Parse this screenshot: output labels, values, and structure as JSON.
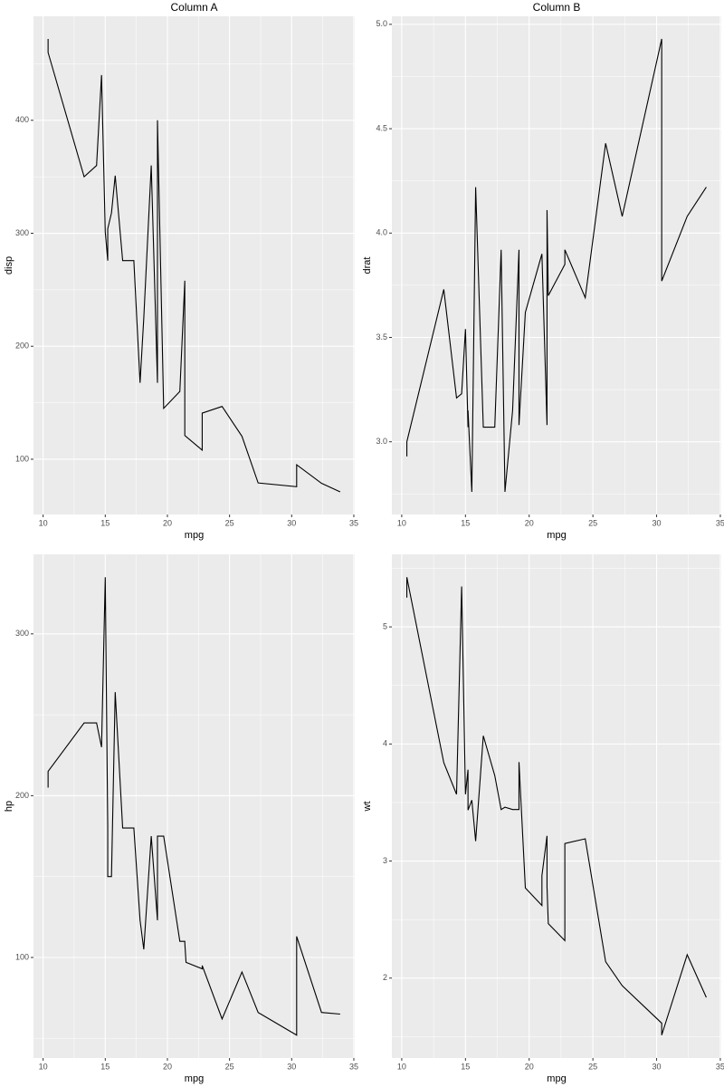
{
  "chart_data": [
    {
      "type": "line",
      "title": "Column A",
      "xlabel": "mpg",
      "ylabel": "disp",
      "color": "#000000",
      "grid": true,
      "x": [
        10.4,
        10.4,
        13.3,
        14.3,
        14.7,
        15.0,
        15.2,
        15.2,
        15.5,
        15.8,
        16.4,
        17.3,
        17.8,
        18.1,
        18.7,
        19.2,
        19.2,
        19.7,
        21.0,
        21.0,
        21.4,
        21.4,
        21.5,
        22.8,
        22.8,
        24.4,
        26.0,
        27.3,
        30.4,
        30.4,
        32.4,
        33.9
      ],
      "values": [
        472,
        460,
        350,
        360,
        440,
        301,
        275.8,
        304,
        318,
        351,
        275.8,
        275.8,
        167.6,
        225,
        360,
        167.6,
        400,
        145,
        160,
        160,
        258,
        121,
        120.1,
        108,
        140.8,
        146.7,
        120.3,
        79,
        75.7,
        95.1,
        78.7,
        71.1
      ],
      "xlim": [
        9.225,
        35.075
      ],
      "xticks": [
        10,
        15,
        20,
        25,
        30,
        35
      ],
      "ylim": [
        51.055,
        492.045
      ],
      "yticks": [
        100,
        200,
        300,
        400
      ]
    },
    {
      "type": "line",
      "title": "Column B",
      "xlabel": "mpg",
      "ylabel": "drat",
      "color": "#000000",
      "grid": true,
      "x": [
        10.4,
        10.4,
        13.3,
        14.3,
        14.7,
        15.0,
        15.2,
        15.2,
        15.5,
        15.8,
        16.4,
        17.3,
        17.8,
        18.1,
        18.7,
        19.2,
        19.2,
        19.7,
        21.0,
        21.0,
        21.4,
        21.4,
        21.5,
        22.8,
        22.8,
        24.4,
        26.0,
        27.3,
        30.4,
        30.4,
        32.4,
        33.9
      ],
      "values": [
        2.93,
        3.0,
        3.73,
        3.21,
        3.23,
        3.54,
        3.07,
        3.15,
        2.76,
        4.22,
        3.07,
        3.07,
        3.92,
        2.76,
        3.15,
        3.92,
        3.08,
        3.62,
        3.9,
        3.9,
        3.08,
        4.11,
        3.7,
        3.85,
        3.92,
        3.69,
        4.43,
        4.08,
        4.93,
        3.77,
        4.08,
        4.22
      ],
      "xlim": [
        9.225,
        35.075
      ],
      "xticks": [
        10,
        15,
        20,
        25,
        30,
        35
      ],
      "ylim": [
        2.6515,
        5.0385
      ],
      "yticks": [
        {
          "value": 3,
          "label": "3.0"
        },
        3.5,
        {
          "value": 4,
          "label": "4.0"
        },
        4.5,
        {
          "value": 5,
          "label": "5.0"
        }
      ]
    },
    {
      "type": "line",
      "xlabel": "mpg",
      "ylabel": "hp",
      "color": "#000000",
      "grid": true,
      "x": [
        10.4,
        10.4,
        13.3,
        14.3,
        14.7,
        15.0,
        15.2,
        15.2,
        15.5,
        15.8,
        16.4,
        17.3,
        17.8,
        18.1,
        18.7,
        19.2,
        19.2,
        19.7,
        21.0,
        21.0,
        21.4,
        21.4,
        21.5,
        22.8,
        22.8,
        24.4,
        26.0,
        27.3,
        30.4,
        30.4,
        32.4,
        33.9
      ],
      "values": [
        205,
        215,
        245,
        245,
        230,
        335,
        180,
        150,
        150,
        264,
        180,
        180,
        123,
        105,
        175,
        123,
        175,
        175,
        110,
        110,
        110,
        109,
        97,
        93,
        95,
        62,
        91,
        66,
        52,
        113,
        66,
        65
      ],
      "xlim": [
        9.225,
        35.075
      ],
      "xticks": [
        10,
        15,
        20,
        25,
        30,
        35
      ],
      "ylim": [
        37.85,
        349.15
      ],
      "yticks": [
        100,
        200,
        300
      ]
    },
    {
      "type": "line",
      "xlabel": "mpg",
      "ylabel": "wt",
      "color": "#000000",
      "grid": true,
      "x": [
        10.4,
        10.4,
        13.3,
        14.3,
        14.7,
        15.0,
        15.2,
        15.2,
        15.5,
        15.8,
        16.4,
        17.3,
        17.8,
        18.1,
        18.7,
        19.2,
        19.2,
        19.7,
        21.0,
        21.0,
        21.4,
        21.4,
        21.5,
        22.8,
        22.8,
        24.4,
        26.0,
        27.3,
        30.4,
        30.4,
        32.4,
        33.9
      ],
      "values": [
        5.25,
        5.424,
        3.84,
        3.57,
        5.345,
        3.57,
        3.78,
        3.435,
        3.52,
        3.17,
        4.07,
        3.73,
        3.44,
        3.46,
        3.44,
        3.44,
        3.845,
        2.77,
        2.62,
        2.875,
        3.215,
        2.78,
        2.465,
        2.32,
        3.15,
        3.19,
        2.14,
        1.935,
        1.615,
        1.513,
        2.2,
        1.835
      ],
      "xlim": [
        9.225,
        35.075
      ],
      "xticks": [
        10,
        15,
        20,
        25,
        30,
        35
      ],
      "ylim": [
        1.31745,
        5.61955
      ],
      "yticks": [
        2,
        3,
        4,
        5
      ]
    }
  ]
}
